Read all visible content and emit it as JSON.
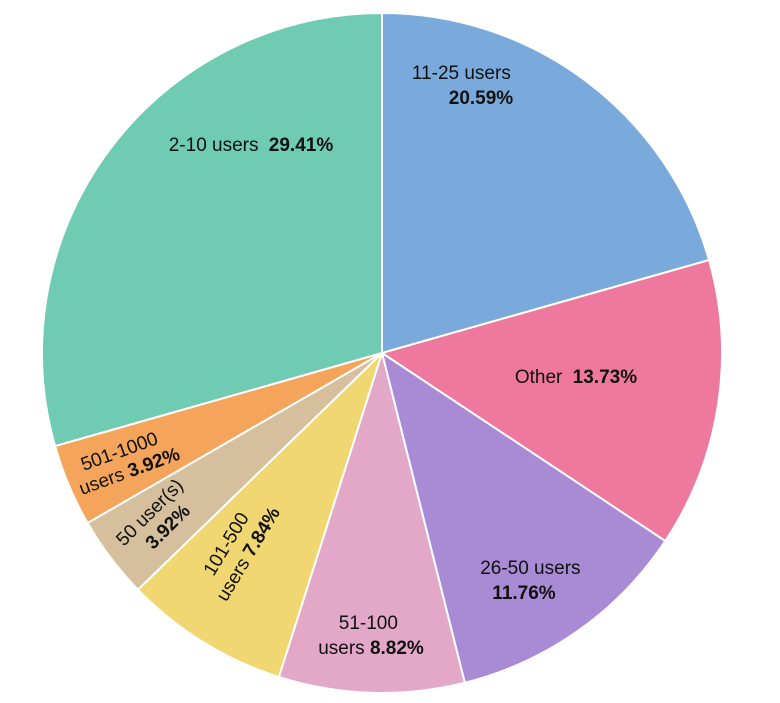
{
  "chart_data": {
    "type": "pie",
    "start_angle_deg": 0,
    "direction": "clockwise",
    "slices": [
      {
        "label": "11-25 users",
        "value": 20.59,
        "pct_text": "20.59%",
        "color": "#7aaadb"
      },
      {
        "label": "Other",
        "value": 13.73,
        "pct_text": "13.73%",
        "color": "#ee789e"
      },
      {
        "label": "26-50 users",
        "value": 11.76,
        "pct_text": "11.76%",
        "color": "#a98ad4"
      },
      {
        "label": "51-100 users",
        "value": 8.82,
        "pct_text": "8.82%",
        "color": "#e3a7c8"
      },
      {
        "label": "101-500 users",
        "value": 7.84,
        "pct_text": "7.84%",
        "color": "#f1d771"
      },
      {
        "label": "50 user(s)",
        "value": 3.92,
        "pct_text": "3.92%",
        "color": "#d5bf9d"
      },
      {
        "label": "501-1000 users",
        "value": 3.92,
        "pct_text": "3.92%",
        "color": "#f5a55b"
      },
      {
        "label": "2-10 users",
        "value": 29.41,
        "pct_text": "29.41%",
        "color": "#6fccb2"
      }
    ]
  }
}
